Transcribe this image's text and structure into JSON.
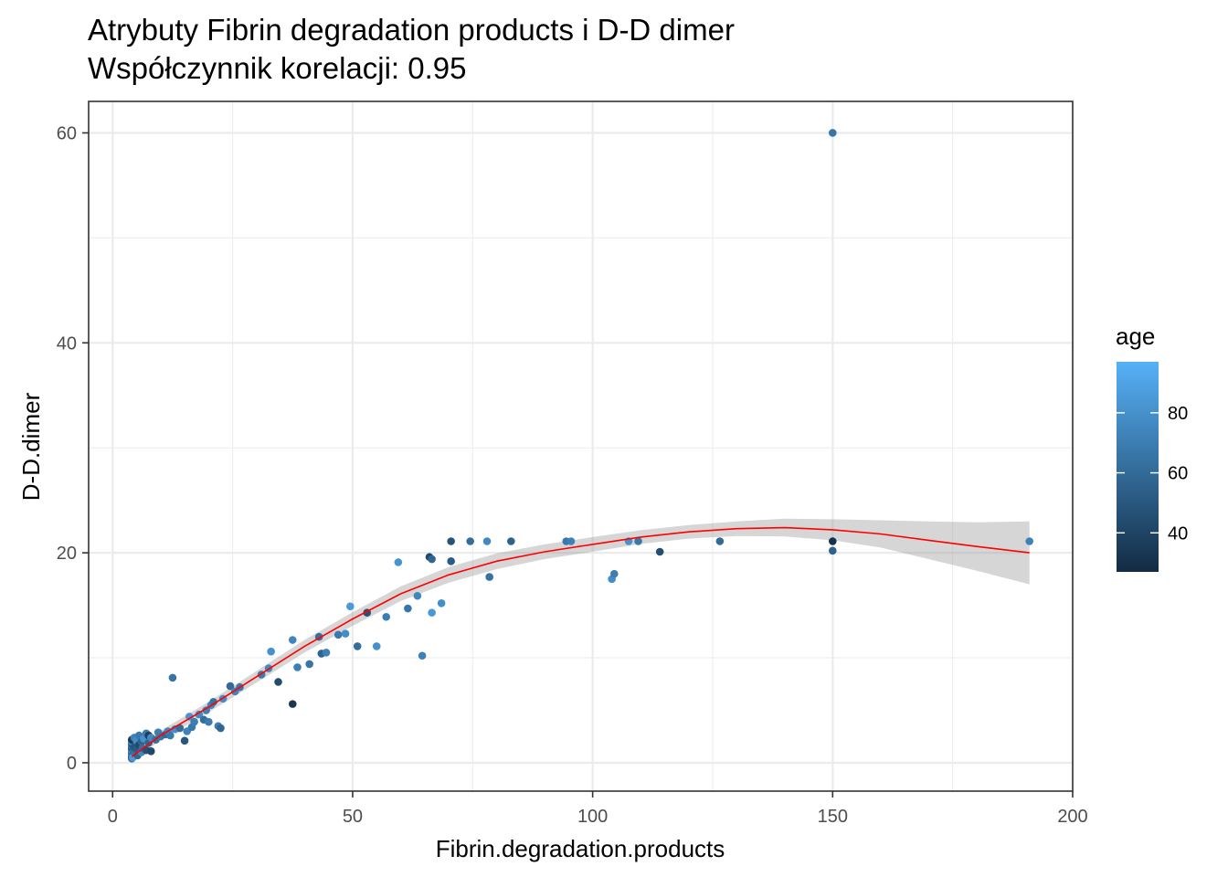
{
  "chart_data": {
    "type": "scatter",
    "title": "Atrybuty Fibrin degradation products i D-D dimer",
    "subtitle": "Współczynnik korelacji: 0.95",
    "xlabel": "Fibrin.degradation.products",
    "ylabel": "D-D.dimer",
    "xlim": [
      -5,
      200
    ],
    "ylim": [
      -2.7,
      63
    ],
    "x_ticks": [
      0,
      50,
      100,
      150,
      200
    ],
    "y_ticks": [
      0,
      20,
      40,
      60
    ],
    "grid": true,
    "legend": {
      "title": "age",
      "position": "right",
      "type": "colorbar",
      "range": [
        27,
        97
      ],
      "ticks": [
        40,
        60,
        80
      ],
      "color_low": "#132B43",
      "color_high": "#56B1F7"
    },
    "points": [
      {
        "x": 4,
        "y": 0.4,
        "age": 60
      },
      {
        "x": 4,
        "y": 0.6,
        "age": 45
      },
      {
        "x": 4,
        "y": 0.8,
        "age": 70
      },
      {
        "x": 4,
        "y": 1.0,
        "age": 55
      },
      {
        "x": 4,
        "y": 1.2,
        "age": 80
      },
      {
        "x": 4,
        "y": 1.4,
        "age": 40
      },
      {
        "x": 4,
        "y": 1.6,
        "age": 65
      },
      {
        "x": 4,
        "y": 1.8,
        "age": 50
      },
      {
        "x": 4,
        "y": 2.0,
        "age": 75
      },
      {
        "x": 4,
        "y": 2.2,
        "age": 35
      },
      {
        "x": 4.2,
        "y": 0.5,
        "age": 85
      },
      {
        "x": 4.3,
        "y": 1.1,
        "age": 60
      },
      {
        "x": 4.5,
        "y": 1.5,
        "age": 48
      },
      {
        "x": 4.5,
        "y": 2.4,
        "age": 72
      },
      {
        "x": 4.8,
        "y": 0.9,
        "age": 66
      },
      {
        "x": 5,
        "y": 1.3,
        "age": 52
      },
      {
        "x": 5,
        "y": 2.1,
        "age": 78
      },
      {
        "x": 5.2,
        "y": 0.7,
        "age": 58
      },
      {
        "x": 5.5,
        "y": 1.7,
        "age": 43
      },
      {
        "x": 5.5,
        "y": 2.6,
        "age": 68
      },
      {
        "x": 6,
        "y": 1.0,
        "age": 74
      },
      {
        "x": 6,
        "y": 2.0,
        "age": 55
      },
      {
        "x": 6.2,
        "y": 1.4,
        "age": 62
      },
      {
        "x": 6.5,
        "y": 2.3,
        "age": 80
      },
      {
        "x": 7,
        "y": 1.2,
        "age": 47
      },
      {
        "x": 7,
        "y": 2.8,
        "age": 69
      },
      {
        "x": 7.5,
        "y": 1.9,
        "age": 57
      },
      {
        "x": 7.5,
        "y": 2.6,
        "age": 38
      },
      {
        "x": 8,
        "y": 1.1,
        "age": 42
      },
      {
        "x": 8,
        "y": 2.4,
        "age": 76
      },
      {
        "x": 9,
        "y": 2.2,
        "age": 63
      },
      {
        "x": 9.5,
        "y": 2.9,
        "age": 71
      },
      {
        "x": 10,
        "y": 2.5,
        "age": 66
      },
      {
        "x": 11,
        "y": 2.7,
        "age": 59
      },
      {
        "x": 11.5,
        "y": 3.0,
        "age": 74
      },
      {
        "x": 12,
        "y": 2.6,
        "age": 68
      },
      {
        "x": 12.5,
        "y": 8.1,
        "age": 65
      },
      {
        "x": 13,
        "y": 3.2,
        "age": 78
      },
      {
        "x": 14,
        "y": 3.3,
        "age": 61
      },
      {
        "x": 15,
        "y": 2.1,
        "age": 50
      },
      {
        "x": 15.5,
        "y": 3.0,
        "age": 73
      },
      {
        "x": 16,
        "y": 4.4,
        "age": 82
      },
      {
        "x": 16.5,
        "y": 3.4,
        "age": 67
      },
      {
        "x": 17,
        "y": 3.9,
        "age": 70
      },
      {
        "x": 18,
        "y": 4.6,
        "age": 77
      },
      {
        "x": 19,
        "y": 4.1,
        "age": 62
      },
      {
        "x": 19.5,
        "y": 5.0,
        "age": 72
      },
      {
        "x": 20,
        "y": 3.9,
        "age": 69
      },
      {
        "x": 20.5,
        "y": 5.5,
        "age": 75
      },
      {
        "x": 21,
        "y": 5.8,
        "age": 64
      },
      {
        "x": 22,
        "y": 3.5,
        "age": 71
      },
      {
        "x": 22.5,
        "y": 3.3,
        "age": 58
      },
      {
        "x": 23,
        "y": 6.1,
        "age": 79
      },
      {
        "x": 24.5,
        "y": 7.3,
        "age": 60
      },
      {
        "x": 25.5,
        "y": 6.8,
        "age": 73
      },
      {
        "x": 26.5,
        "y": 7.2,
        "age": 67
      },
      {
        "x": 31,
        "y": 8.4,
        "age": 69
      },
      {
        "x": 32.5,
        "y": 9.0,
        "age": 76
      },
      {
        "x": 33,
        "y": 10.6,
        "age": 80
      },
      {
        "x": 34.5,
        "y": 7.7,
        "age": 44
      },
      {
        "x": 37.5,
        "y": 5.6,
        "age": 33
      },
      {
        "x": 37.5,
        "y": 11.7,
        "age": 74
      },
      {
        "x": 38.5,
        "y": 9.1,
        "age": 71
      },
      {
        "x": 41,
        "y": 9.4,
        "age": 66
      },
      {
        "x": 43,
        "y": 12.0,
        "age": 63
      },
      {
        "x": 43.5,
        "y": 10.4,
        "age": 57
      },
      {
        "x": 44.5,
        "y": 10.5,
        "age": 72
      },
      {
        "x": 47,
        "y": 12.2,
        "age": 68
      },
      {
        "x": 48.5,
        "y": 12.3,
        "age": 78
      },
      {
        "x": 49.5,
        "y": 14.9,
        "age": 85
      },
      {
        "x": 51,
        "y": 11.1,
        "age": 61
      },
      {
        "x": 53,
        "y": 14.3,
        "age": 46
      },
      {
        "x": 55,
        "y": 11.1,
        "age": 80
      },
      {
        "x": 57,
        "y": 13.9,
        "age": 70
      },
      {
        "x": 59.5,
        "y": 19.1,
        "age": 82
      },
      {
        "x": 61.5,
        "y": 14.7,
        "age": 66
      },
      {
        "x": 63.5,
        "y": 15.9,
        "age": 74
      },
      {
        "x": 64.5,
        "y": 10.2,
        "age": 72
      },
      {
        "x": 66,
        "y": 19.6,
        "age": 42
      },
      {
        "x": 66.5,
        "y": 19.4,
        "age": 58
      },
      {
        "x": 66.5,
        "y": 14.3,
        "age": 84
      },
      {
        "x": 68.5,
        "y": 15.2,
        "age": 79
      },
      {
        "x": 70.5,
        "y": 19.2,
        "age": 52
      },
      {
        "x": 70.5,
        "y": 21.1,
        "age": 48
      },
      {
        "x": 74.5,
        "y": 21.1,
        "age": 62
      },
      {
        "x": 78,
        "y": 21.1,
        "age": 76
      },
      {
        "x": 78.5,
        "y": 17.7,
        "age": 64
      },
      {
        "x": 83,
        "y": 21.1,
        "age": 56
      },
      {
        "x": 94.5,
        "y": 21.1,
        "age": 68
      },
      {
        "x": 95.5,
        "y": 21.1,
        "age": 72
      },
      {
        "x": 104,
        "y": 17.5,
        "age": 78
      },
      {
        "x": 104.5,
        "y": 18.0,
        "age": 70
      },
      {
        "x": 107.5,
        "y": 21.1,
        "age": 81
      },
      {
        "x": 109.5,
        "y": 21.1,
        "age": 67
      },
      {
        "x": 114,
        "y": 20.1,
        "age": 45
      },
      {
        "x": 126.5,
        "y": 21.1,
        "age": 60
      },
      {
        "x": 150,
        "y": 60.0,
        "age": 66
      },
      {
        "x": 150,
        "y": 21.1,
        "age": 30
      },
      {
        "x": 150,
        "y": 20.2,
        "age": 55
      },
      {
        "x": 191,
        "y": 21.1,
        "age": 72
      }
    ],
    "smooth": {
      "color": "#ff0000",
      "x": [
        4,
        10,
        20,
        30,
        40,
        50,
        60,
        70,
        80,
        90,
        100,
        110,
        120,
        130,
        140,
        150,
        160,
        170,
        180,
        191
      ],
      "y": [
        0.6,
        2.6,
        5.3,
        8.2,
        11.1,
        13.7,
        16.1,
        17.9,
        19.2,
        20.1,
        20.8,
        21.5,
        22.0,
        22.3,
        22.4,
        22.2,
        21.8,
        21.2,
        20.6,
        20.0
      ],
      "ci_halfwidth": [
        0.45,
        0.45,
        0.5,
        0.55,
        0.6,
        0.65,
        0.7,
        0.75,
        0.75,
        0.7,
        0.7,
        0.65,
        0.65,
        0.7,
        0.85,
        1.0,
        1.3,
        1.8,
        2.3,
        3.0
      ]
    }
  }
}
